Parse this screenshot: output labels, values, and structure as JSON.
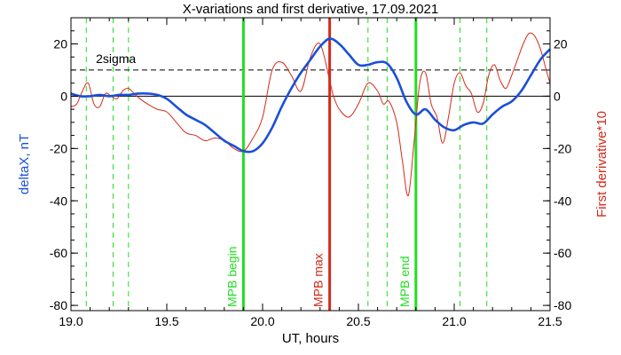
{
  "chart_data": {
    "type": "line",
    "title": "X-variations and first derivative, 17.09.2021",
    "xlabel": "UT, hours",
    "ylabel_left": "deltaX, nT",
    "ylabel_right": "First derivative*10",
    "xlim": [
      19.0,
      21.5
    ],
    "ylim": [
      -82,
      30
    ],
    "x_ticks": [
      19.0,
      19.5,
      20.0,
      20.5,
      21.0,
      21.5
    ],
    "x_tick_labels": [
      "19.0",
      "19.5",
      "20.0",
      "20.5",
      "21.0",
      "21.5"
    ],
    "y_ticks": [
      20,
      0,
      -20,
      -40,
      -60,
      -80
    ],
    "y_tick_labels": [
      "20",
      "0",
      "-20",
      "-40",
      "-60",
      "-80"
    ],
    "colors": {
      "deltaX": "#1a4fd8",
      "derivative": "#d42a1a",
      "mpb_lines": "#22dd22",
      "mpb_max": "#d42a1a",
      "dashed_lines": "#22dd22",
      "reference": "#000000"
    },
    "series": [
      {
        "name": "deltaX",
        "axis": "left",
        "color": "#1a4fd8",
        "x": [
          19.0,
          19.05,
          19.1,
          19.15,
          19.2,
          19.25,
          19.3,
          19.35,
          19.4,
          19.45,
          19.5,
          19.55,
          19.6,
          19.65,
          19.7,
          19.75,
          19.8,
          19.85,
          19.9,
          19.95,
          20.0,
          20.05,
          20.1,
          20.15,
          20.2,
          20.25,
          20.3,
          20.35,
          20.4,
          20.45,
          20.5,
          20.55,
          20.6,
          20.65,
          20.7,
          20.75,
          20.8,
          20.85,
          20.9,
          20.95,
          21.0,
          21.05,
          21.1,
          21.15,
          21.2,
          21.25,
          21.3,
          21.35,
          21.4,
          21.45,
          21.5
        ],
        "y": [
          1,
          0,
          0,
          0.5,
          0,
          0.5,
          0.5,
          1,
          1,
          0.5,
          -1,
          -4,
          -7,
          -9,
          -11,
          -14,
          -17,
          -19,
          -21,
          -21,
          -18,
          -12,
          -4,
          3,
          9,
          14,
          19,
          22,
          20,
          16,
          12,
          12,
          13,
          12.5,
          7,
          -2,
          -7,
          -5,
          -9,
          -12,
          -13,
          -11,
          -10,
          -10.5,
          -7,
          -4,
          -2,
          2,
          8,
          14,
          18
        ]
      },
      {
        "name": "First derivative*10",
        "axis": "right",
        "color": "#d42a1a",
        "x": [
          19.0,
          19.03,
          19.06,
          19.09,
          19.12,
          19.15,
          19.18,
          19.21,
          19.24,
          19.27,
          19.3,
          19.33,
          19.36,
          19.4,
          19.45,
          19.5,
          19.55,
          19.6,
          19.65,
          19.7,
          19.75,
          19.8,
          19.85,
          19.9,
          19.95,
          20.0,
          20.05,
          20.1,
          20.15,
          20.2,
          20.25,
          20.3,
          20.35,
          20.37,
          20.4,
          20.45,
          20.5,
          20.55,
          20.6,
          20.63,
          20.66,
          20.7,
          20.73,
          20.76,
          20.79,
          20.82,
          20.85,
          20.88,
          20.91,
          20.94,
          20.97,
          21.0,
          21.03,
          21.06,
          21.09,
          21.12,
          21.15,
          21.18,
          21.21,
          21.24,
          21.27,
          21.3,
          21.33,
          21.36,
          21.39,
          21.42,
          21.45,
          21.48,
          21.5
        ],
        "y": [
          -4,
          -3,
          2,
          5,
          -3,
          -4,
          1,
          0,
          -1,
          2,
          3,
          1,
          -1,
          -3,
          -5,
          -6,
          -10,
          -14,
          -15,
          -17,
          -16,
          -17,
          -20,
          -21,
          -16,
          -8,
          10,
          13,
          8,
          2,
          15,
          20,
          6,
          0,
          -5,
          -8,
          -3,
          5,
          2,
          -3,
          -2,
          -10,
          -25,
          -38,
          -18,
          5,
          9,
          -3,
          -8,
          -18,
          -8,
          5,
          9,
          4,
          1,
          -6,
          -3,
          8,
          12,
          6,
          3,
          8,
          14,
          20,
          24,
          23,
          18,
          10,
          5
        ]
      }
    ],
    "reference_lines": [
      {
        "y": 0,
        "style": "solid",
        "label": ""
      },
      {
        "y": 10,
        "style": "dashed",
        "label": "2sigma"
      }
    ],
    "vertical_markers": [
      {
        "x": 19.9,
        "label": "MPB begin",
        "color": "#22dd22",
        "style": "solid"
      },
      {
        "x": 20.35,
        "label": "MPB max",
        "color": "#d42a1a",
        "style": "solid"
      },
      {
        "x": 20.8,
        "label": "MPB end",
        "color": "#22dd22",
        "style": "solid"
      }
    ],
    "dashed_verticals": [
      19.08,
      19.22,
      19.3,
      20.55,
      20.65,
      21.03,
      21.17
    ],
    "grid": false,
    "legend": "none"
  }
}
